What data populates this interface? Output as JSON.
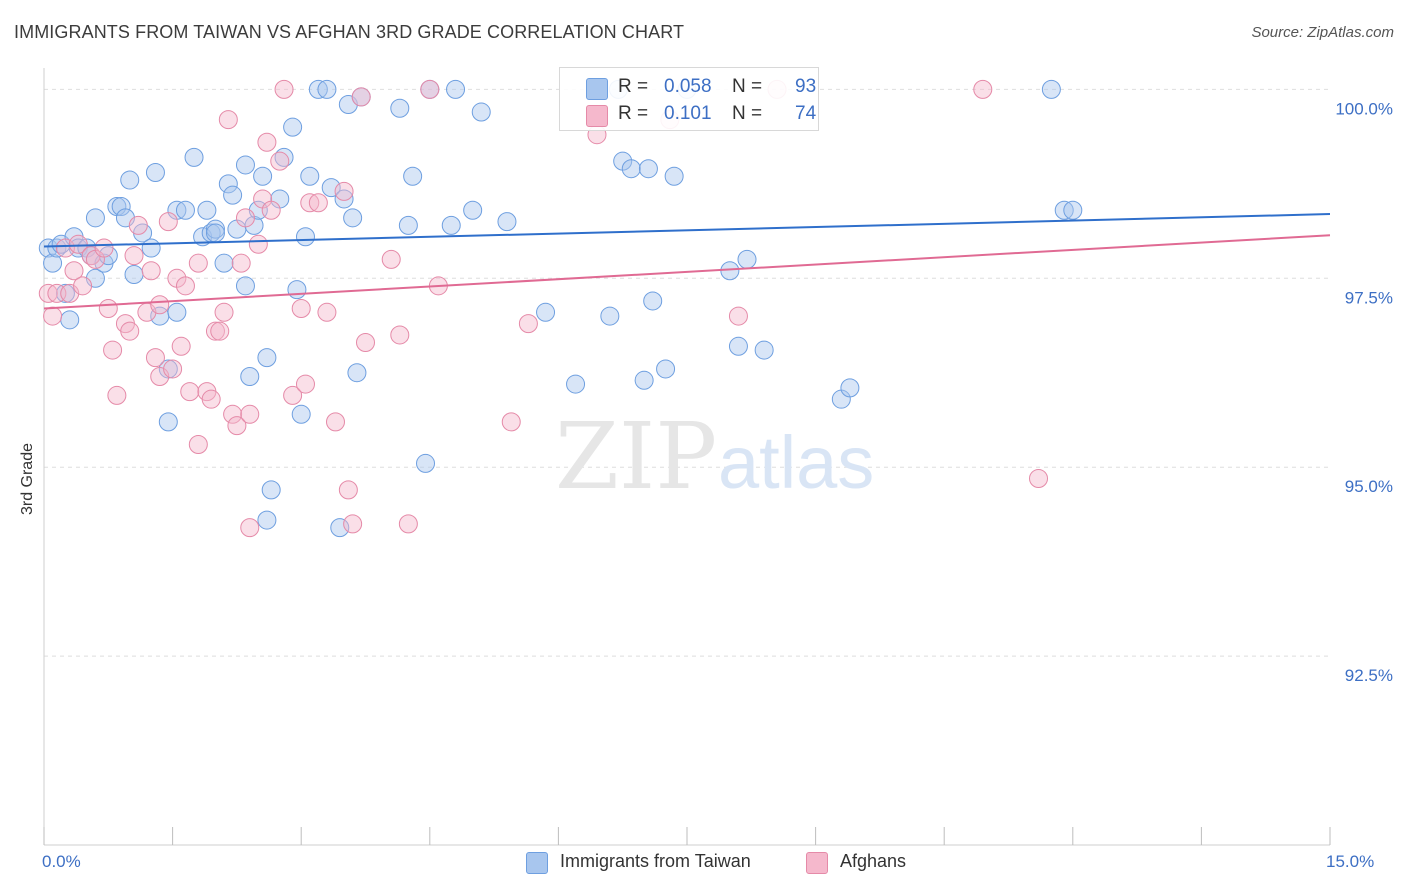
{
  "title": "IMMIGRANTS FROM TAIWAN VS AFGHAN 3RD GRADE CORRELATION CHART",
  "source": "Source: ZipAtlas.com",
  "watermark": {
    "zip": "ZIP",
    "atlas": "atlas"
  },
  "legend": {
    "r_label": "R =",
    "n_label": "N =",
    "series": [
      {
        "name": "Immigrants from Taiwan",
        "r": "0.058",
        "n": "93",
        "fill": "#a8c6ee",
        "stroke": "#6e9fe0"
      },
      {
        "name": "Afghans",
        "r": "0.101",
        "n": "74",
        "fill": "#f5b8cc",
        "stroke": "#e58aa8"
      }
    ]
  },
  "chart_data": {
    "type": "scatter",
    "title": "IMMIGRANTS FROM TAIWAN VS AFGHAN 3RD GRADE CORRELATION CHART",
    "xlabel": "",
    "ylabel": "3rd Grade",
    "x_tick_labels": [
      "0.0%",
      "15.0%"
    ],
    "y_tick_labels": [
      "100.0%",
      "97.5%",
      "95.0%",
      "92.5%"
    ],
    "y_ticks": [
      100.0,
      97.5,
      95.0,
      92.5
    ],
    "xlim": [
      0,
      15
    ],
    "ylim": [
      90.0,
      100.23
    ],
    "grid": true,
    "series": [
      {
        "name": "Immigrants from Taiwan",
        "color": "#3a7bd5",
        "trend": {
          "x": [
            0,
            15
          ],
          "y": [
            97.92,
            98.35
          ]
        },
        "points": [
          [
            0.05,
            97.9
          ],
          [
            0.1,
            97.7
          ],
          [
            0.15,
            97.9
          ],
          [
            0.2,
            97.95
          ],
          [
            0.25,
            97.3
          ],
          [
            0.3,
            96.95
          ],
          [
            0.35,
            98.05
          ],
          [
            0.4,
            97.9
          ],
          [
            0.5,
            97.9
          ],
          [
            0.55,
            97.8
          ],
          [
            0.6,
            97.5
          ],
          [
            0.6,
            98.3
          ],
          [
            0.7,
            97.7
          ],
          [
            0.75,
            97.8
          ],
          [
            0.85,
            98.45
          ],
          [
            0.9,
            98.45
          ],
          [
            0.95,
            98.3
          ],
          [
            1.0,
            98.8
          ],
          [
            1.05,
            97.55
          ],
          [
            1.15,
            98.1
          ],
          [
            1.25,
            97.9
          ],
          [
            1.3,
            98.9
          ],
          [
            1.35,
            97.0
          ],
          [
            1.45,
            96.3
          ],
          [
            1.45,
            95.6
          ],
          [
            1.55,
            98.4
          ],
          [
            1.55,
            97.05
          ],
          [
            1.65,
            98.4
          ],
          [
            1.75,
            99.1
          ],
          [
            1.85,
            98.05
          ],
          [
            1.9,
            98.4
          ],
          [
            1.95,
            98.1
          ],
          [
            2.0,
            98.15
          ],
          [
            2.0,
            98.1
          ],
          [
            2.1,
            97.7
          ],
          [
            2.15,
            98.75
          ],
          [
            2.2,
            98.6
          ],
          [
            2.25,
            98.15
          ],
          [
            2.35,
            99.0
          ],
          [
            2.35,
            97.4
          ],
          [
            2.4,
            96.2
          ],
          [
            2.45,
            98.2
          ],
          [
            2.5,
            98.4
          ],
          [
            2.55,
            98.85
          ],
          [
            2.6,
            94.3
          ],
          [
            2.6,
            96.45
          ],
          [
            2.65,
            94.7
          ],
          [
            2.75,
            98.55
          ],
          [
            2.8,
            99.1
          ],
          [
            2.9,
            99.5
          ],
          [
            2.95,
            97.35
          ],
          [
            3.0,
            95.7
          ],
          [
            3.05,
            98.05
          ],
          [
            3.1,
            98.85
          ],
          [
            3.2,
            100.0
          ],
          [
            3.3,
            100.0
          ],
          [
            3.35,
            98.7
          ],
          [
            3.45,
            94.2
          ],
          [
            3.5,
            98.55
          ],
          [
            3.55,
            99.8
          ],
          [
            3.6,
            98.3
          ],
          [
            3.65,
            96.25
          ],
          [
            3.7,
            99.9
          ],
          [
            4.15,
            99.75
          ],
          [
            4.25,
            98.2
          ],
          [
            4.3,
            98.85
          ],
          [
            4.45,
            95.05
          ],
          [
            4.5,
            100.0
          ],
          [
            4.75,
            98.2
          ],
          [
            4.8,
            100.0
          ],
          [
            5.0,
            98.4
          ],
          [
            5.1,
            99.7
          ],
          [
            5.4,
            98.25
          ],
          [
            5.85,
            97.05
          ],
          [
            6.2,
            96.1
          ],
          [
            6.6,
            97.0
          ],
          [
            6.7,
            100.0
          ],
          [
            6.75,
            99.05
          ],
          [
            6.85,
            98.95
          ],
          [
            7.0,
            96.15
          ],
          [
            7.05,
            98.95
          ],
          [
            7.1,
            97.2
          ],
          [
            7.25,
            96.3
          ],
          [
            7.35,
            98.85
          ],
          [
            7.5,
            100.0
          ],
          [
            8.0,
            97.6
          ],
          [
            8.1,
            96.6
          ],
          [
            8.2,
            97.75
          ],
          [
            8.4,
            96.55
          ],
          [
            9.3,
            95.9
          ],
          [
            9.4,
            96.05
          ],
          [
            11.75,
            100.0
          ],
          [
            11.9,
            98.4
          ],
          [
            12.0,
            98.4
          ]
        ]
      },
      {
        "name": "Afghans",
        "color": "#e07098",
        "trend": {
          "x": [
            0,
            15
          ],
          "y": [
            97.1,
            98.07
          ]
        },
        "points": [
          [
            0.05,
            97.3
          ],
          [
            0.1,
            97.0
          ],
          [
            0.15,
            97.3
          ],
          [
            0.25,
            97.9
          ],
          [
            0.3,
            97.3
          ],
          [
            0.35,
            97.6
          ],
          [
            0.4,
            97.95
          ],
          [
            0.45,
            97.4
          ],
          [
            0.55,
            97.8
          ],
          [
            0.6,
            97.75
          ],
          [
            0.7,
            97.9
          ],
          [
            0.75,
            97.1
          ],
          [
            0.8,
            96.55
          ],
          [
            0.85,
            95.95
          ],
          [
            0.95,
            96.9
          ],
          [
            1.0,
            96.8
          ],
          [
            1.05,
            97.8
          ],
          [
            1.1,
            98.2
          ],
          [
            1.2,
            97.05
          ],
          [
            1.25,
            97.6
          ],
          [
            1.3,
            96.45
          ],
          [
            1.35,
            96.2
          ],
          [
            1.35,
            97.15
          ],
          [
            1.45,
            98.25
          ],
          [
            1.5,
            96.3
          ],
          [
            1.55,
            97.5
          ],
          [
            1.6,
            96.6
          ],
          [
            1.65,
            97.4
          ],
          [
            1.7,
            96.0
          ],
          [
            1.8,
            97.7
          ],
          [
            1.8,
            95.3
          ],
          [
            1.9,
            96.0
          ],
          [
            1.95,
            95.9
          ],
          [
            2.0,
            96.8
          ],
          [
            2.05,
            96.8
          ],
          [
            2.1,
            97.05
          ],
          [
            2.15,
            99.6
          ],
          [
            2.2,
            95.7
          ],
          [
            2.25,
            95.55
          ],
          [
            2.3,
            97.7
          ],
          [
            2.35,
            98.3
          ],
          [
            2.4,
            95.7
          ],
          [
            2.4,
            94.2
          ],
          [
            2.5,
            97.95
          ],
          [
            2.55,
            98.55
          ],
          [
            2.6,
            99.3
          ],
          [
            2.65,
            98.4
          ],
          [
            2.75,
            99.05
          ],
          [
            2.8,
            100.0
          ],
          [
            2.9,
            95.95
          ],
          [
            3.0,
            97.1
          ],
          [
            3.05,
            96.1
          ],
          [
            3.1,
            98.5
          ],
          [
            3.2,
            98.5
          ],
          [
            3.3,
            97.05
          ],
          [
            3.4,
            95.6
          ],
          [
            3.5,
            98.65
          ],
          [
            3.55,
            94.7
          ],
          [
            3.6,
            94.25
          ],
          [
            3.7,
            99.9
          ],
          [
            3.75,
            96.65
          ],
          [
            4.05,
            97.75
          ],
          [
            4.15,
            96.75
          ],
          [
            4.25,
            94.25
          ],
          [
            4.5,
            100.0
          ],
          [
            4.6,
            97.4
          ],
          [
            5.45,
            95.6
          ],
          [
            5.65,
            96.9
          ],
          [
            6.45,
            99.4
          ],
          [
            7.3,
            99.6
          ],
          [
            8.1,
            97.0
          ],
          [
            8.55,
            100.0
          ],
          [
            10.95,
            100.0
          ],
          [
            11.6,
            94.85
          ]
        ]
      }
    ]
  }
}
